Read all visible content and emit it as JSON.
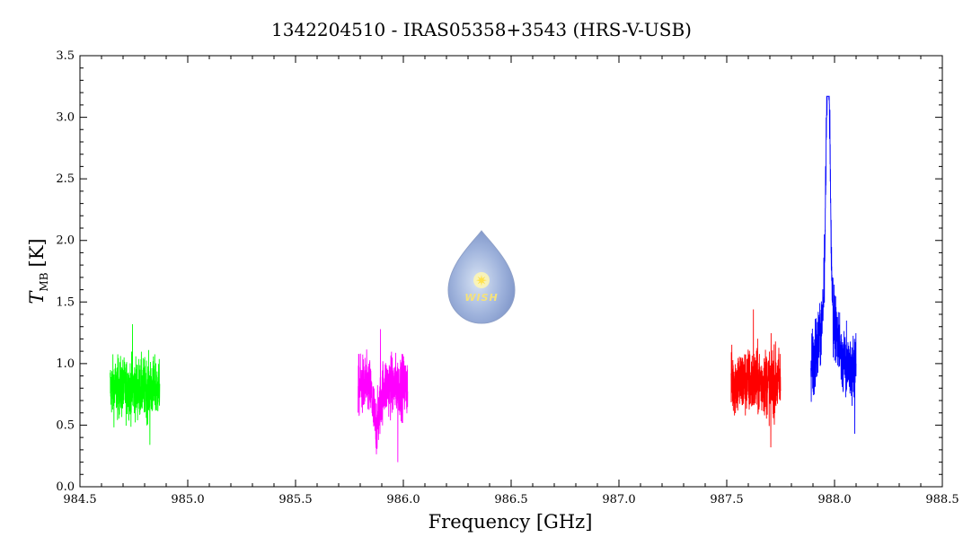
{
  "chart_data": {
    "type": "line",
    "title": "1342204510 - IRAS05358+3543 (HRS-V-USB)",
    "xlabel": "Frequency [GHz]",
    "ylabel": "T",
    "ylabel_subscript": "MB",
    "ylabel_unit": "[K]",
    "xlim": [
      984.5,
      988.5
    ],
    "ylim": [
      0.0,
      3.5
    ],
    "xticks": [
      "984.5",
      "985.0",
      "985.5",
      "986.0",
      "986.5",
      "987.0",
      "987.5",
      "988.0",
      "988.5"
    ],
    "yticks": [
      "0.0",
      "0.5",
      "1.0",
      "1.5",
      "2.0",
      "2.5",
      "3.0",
      "3.5"
    ],
    "grid": false,
    "legend": "none",
    "series": [
      {
        "color": "#00ff00",
        "x_range": [
          984.64,
          984.87
        ],
        "baseline": 0.8,
        "noise": 0.16,
        "min": 0.34,
        "max": 1.32
      },
      {
        "color": "#ff00ff",
        "x_range": [
          985.79,
          986.02
        ],
        "baseline": 0.82,
        "noise": 0.16,
        "min": 0.2,
        "max": 1.28,
        "absorption": {
          "center": 985.875,
          "depth": 0.32,
          "width": 0.02
        }
      },
      {
        "color": "#ff0000",
        "x_range": [
          987.52,
          987.75
        ],
        "baseline": 0.85,
        "noise": 0.18,
        "min": 0.32,
        "max": 1.44
      },
      {
        "color": "#0000ff",
        "x_range": [
          987.89,
          988.1
        ],
        "baseline": 0.95,
        "noise": 0.18,
        "min": 0.43,
        "max": 3.17,
        "emission": {
          "center": 987.97,
          "peak": 3.1,
          "width": 0.012,
          "wing_peak": 0.55,
          "wing_width": 0.05
        }
      }
    ]
  },
  "watermark": {
    "text": "WISH"
  }
}
